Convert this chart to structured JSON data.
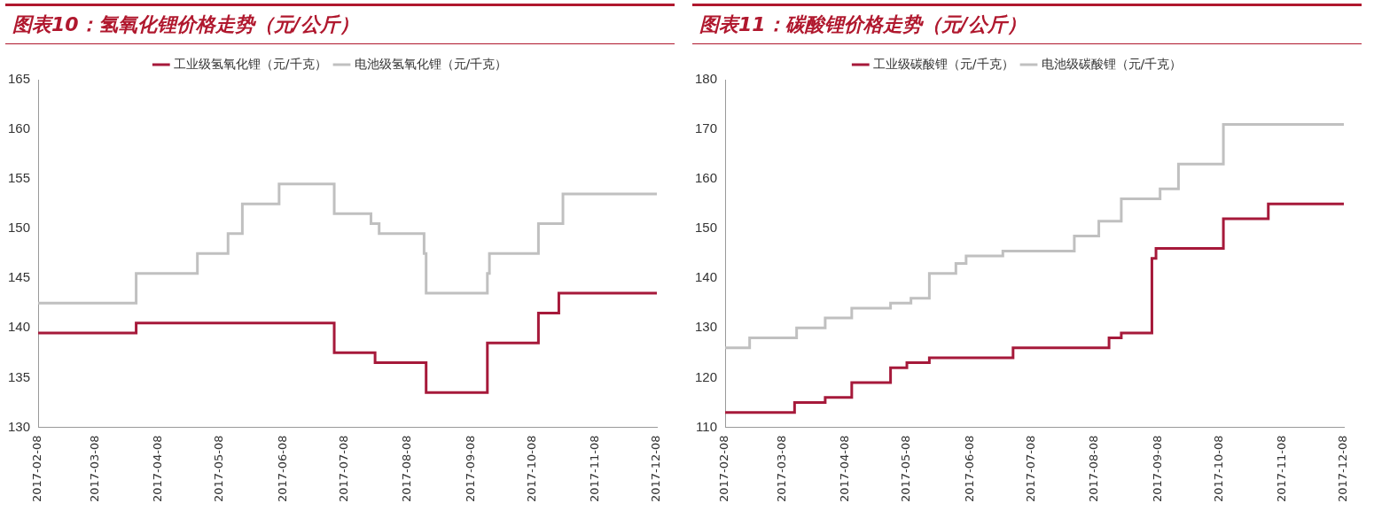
{
  "chart_data": [
    {
      "type": "step",
      "title": "图表10：氢氧化锂价格走势（元/公斤）",
      "xlim": [
        "2017-02-08",
        "2017-12-08"
      ],
      "xticks": [
        "2017-02-08",
        "2017-03-08",
        "2017-04-08",
        "2017-05-08",
        "2017-06-08",
        "2017-07-08",
        "2017-08-08",
        "2017-09-08",
        "2017-10-08",
        "2017-11-08",
        "2017-12-08"
      ],
      "ylim": [
        130,
        165
      ],
      "yticks": [
        130,
        135,
        140,
        145,
        150,
        155,
        160,
        165
      ],
      "grid": false,
      "legend": "top",
      "series": [
        {
          "name": "工业级氢氧化锂（元/千克）",
          "color": "#a6193a",
          "x": [
            "2017-02-08",
            "2017-03-28",
            "2017-07-03",
            "2017-07-23",
            "2017-08-17",
            "2017-09-16",
            "2017-10-11",
            "2017-10-21",
            "2017-12-08"
          ],
          "values": [
            139.5,
            140.5,
            137.5,
            136.5,
            133.5,
            138.5,
            141.5,
            143.5,
            143.5
          ]
        },
        {
          "name": "电池级氢氧化锂（元/千克）",
          "color": "#c0c0c0",
          "x": [
            "2017-02-08",
            "2017-03-28",
            "2017-04-27",
            "2017-05-12",
            "2017-05-19",
            "2017-06-06",
            "2017-07-03",
            "2017-07-21",
            "2017-07-25",
            "2017-08-16",
            "2017-08-17",
            "2017-09-16",
            "2017-09-17",
            "2017-10-11",
            "2017-10-23",
            "2017-12-08"
          ],
          "values": [
            142.5,
            145.5,
            147.5,
            149.5,
            152.5,
            154.5,
            151.5,
            150.5,
            149.5,
            147.5,
            143.5,
            145.5,
            147.5,
            150.5,
            153.5,
            153.5
          ]
        }
      ]
    },
    {
      "type": "step",
      "title": "图表11：碳酸锂价格走势（元/公斤）",
      "xlim": [
        "2017-02-08",
        "2017-12-08"
      ],
      "xticks": [
        "2017-02-08",
        "2017-03-08",
        "2017-04-08",
        "2017-05-08",
        "2017-06-08",
        "2017-07-08",
        "2017-08-08",
        "2017-09-08",
        "2017-10-08",
        "2017-11-08",
        "2017-12-08"
      ],
      "ylim": [
        110,
        180
      ],
      "yticks": [
        110,
        120,
        130,
        140,
        150,
        160,
        170,
        180
      ],
      "grid": false,
      "legend": "top",
      "series": [
        {
          "name": "工业级碳酸锂（元/千克）",
          "color": "#a6193a",
          "x": [
            "2017-02-08",
            "2017-03-14",
            "2017-03-29",
            "2017-04-11",
            "2017-04-30",
            "2017-05-08",
            "2017-05-19",
            "2017-06-29",
            "2017-08-15",
            "2017-08-21",
            "2017-09-05",
            "2017-09-07",
            "2017-10-10",
            "2017-11-01",
            "2017-12-08"
          ],
          "values": [
            113,
            115,
            116,
            119,
            122,
            123,
            124,
            126,
            128,
            129,
            144,
            146,
            152,
            155,
            155
          ]
        },
        {
          "name": "电池级碳酸锂（元/千克）",
          "color": "#c0c0c0",
          "x": [
            "2017-02-08",
            "2017-02-20",
            "2017-03-15",
            "2017-03-29",
            "2017-04-11",
            "2017-04-30",
            "2017-05-10",
            "2017-05-19",
            "2017-06-01",
            "2017-06-06",
            "2017-06-24",
            "2017-07-29",
            "2017-08-10",
            "2017-08-21",
            "2017-09-09",
            "2017-09-18",
            "2017-10-10",
            "2017-12-08"
          ],
          "values": [
            126,
            128,
            130,
            132,
            134,
            135,
            136,
            141,
            143,
            144.5,
            145.5,
            148.5,
            151.5,
            156,
            158,
            163,
            171,
            171
          ]
        }
      ]
    }
  ]
}
